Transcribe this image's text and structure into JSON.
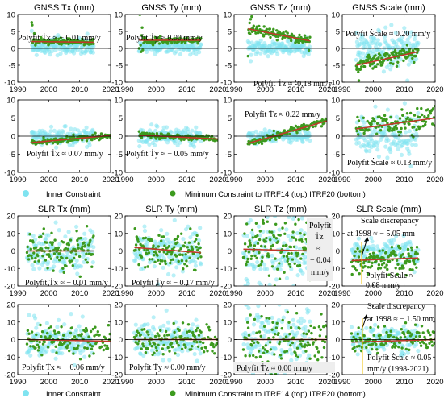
{
  "chart_data": [
    {
      "panel": "gnss-tx",
      "type": "scatter",
      "title": "GNSS Tx (mm)",
      "ylim": [
        -10,
        10
      ],
      "xlim": [
        1990,
        2020
      ],
      "yticks": [
        -10,
        -5,
        0,
        5,
        10
      ],
      "xticks": [
        1990,
        2000,
        2010,
        2020
      ],
      "show_xticklabels": true,
      "annotation": "Polyfit Ṫx ≈ − 0.01 mm/y",
      "fit_slope_mm_per_y": -0.01,
      "inner": {
        "x0": 1994.5,
        "x1": 2014.5,
        "c0": 0.5,
        "c1": 0.3,
        "s": 1.2
      },
      "minimum": {
        "x0": 1994.5,
        "x1": 2014.5,
        "c0": 2.0,
        "c1": 1.8,
        "s": 0.5,
        "early_spread": 4
      }
    },
    {
      "panel": "gnss-ty",
      "type": "scatter",
      "title": "GNSS Ty (mm)",
      "ylim": [
        -10,
        10
      ],
      "xlim": [
        1990,
        2020
      ],
      "yticks": [
        -10,
        -5,
        0,
        5,
        10
      ],
      "xticks": [
        1990,
        2000,
        2010,
        2020
      ],
      "show_xticklabels": true,
      "annotation": "Polyfit Ṫy ≈ 0.00 mm/y",
      "fit_slope_mm_per_y": 0.0,
      "inner": {
        "x0": 1994.5,
        "x1": 2014.5,
        "c0": 0.6,
        "c1": 0.6,
        "s": 1.0
      },
      "minimum": {
        "x0": 1994.5,
        "x1": 2014.5,
        "c0": 2.4,
        "c1": 2.4,
        "s": 0.4,
        "early_spread": 4
      }
    },
    {
      "panel": "gnss-tz",
      "type": "scatter",
      "title": "GNSS Tz (mm)",
      "ylim": [
        -10,
        10
      ],
      "xlim": [
        1990,
        2020
      ],
      "yticks": [
        -10,
        -5,
        0,
        5,
        10
      ],
      "xticks": [
        1990,
        2000,
        2010,
        2020
      ],
      "show_xticklabels": true,
      "annotation": "Polyfit Ṫz ≈ -0.18 mm/y",
      "fit_slope_mm_per_y": -0.18,
      "inner": {
        "x0": 1994.5,
        "x1": 2014.5,
        "c0": 0.5,
        "c1": 0.0,
        "s": 1.0
      },
      "minimum": {
        "x0": 1994.5,
        "x1": 2014.5,
        "c0": 5.8,
        "c1": 2.2,
        "s": 0.7,
        "early_spread": 3
      }
    },
    {
      "panel": "gnss-scale",
      "type": "scatter",
      "title": "GNSS Scale (mm)",
      "ylim": [
        -10,
        10
      ],
      "xlim": [
        1990,
        2020
      ],
      "yticks": [
        -10,
        -5,
        0,
        5,
        10
      ],
      "xticks": [
        1990,
        2000,
        2010,
        2020
      ],
      "show_xticklabels": true,
      "annotation": "Polyfit Ṡcale ≈ 0.20 mm/y",
      "fit_slope_mm_per_y": 0.2,
      "inner": {
        "x0": 1994.5,
        "x1": 2014.5,
        "c0": 0.0,
        "c1": 0.0,
        "s": 3.0
      },
      "minimum": {
        "x0": 1994.5,
        "x1": 2014.5,
        "c0": -5.0,
        "c1": -1.0,
        "s": 1.2,
        "early_spread": 1
      }
    },
    {
      "panel": "gnss-tx-b",
      "type": "scatter",
      "title": "",
      "ylim": [
        -10,
        10
      ],
      "xlim": [
        1990,
        2020
      ],
      "yticks": [
        -10,
        -5,
        0,
        5,
        10
      ],
      "xticks": [
        1990,
        2000,
        2010,
        2020
      ],
      "show_xticklabels": true,
      "annotation": "Polyfit Ṫx ≈ 0.07 mm/y",
      "fit_slope_mm_per_y": 0.07,
      "inner": {
        "x0": 1994.5,
        "x1": 2014.5,
        "c0": 0.0,
        "c1": 0.0,
        "s": 1.2
      },
      "minimum": {
        "x0": 1994.5,
        "x1": 2020,
        "c0": -1.8,
        "c1": 0.2,
        "s": 0.4,
        "early_spread": 0
      }
    },
    {
      "panel": "gnss-ty-b",
      "type": "scatter",
      "title": "",
      "ylim": [
        -10,
        10
      ],
      "xlim": [
        1990,
        2020
      ],
      "yticks": [
        -10,
        -5,
        0,
        5,
        10
      ],
      "xticks": [
        1990,
        2000,
        2010,
        2020
      ],
      "show_xticklabels": true,
      "annotation": "Polyfit Ṫy ≈ − 0.05 mm/y",
      "fit_slope_mm_per_y": -0.05,
      "inner": {
        "x0": 1994.5,
        "x1": 2014.5,
        "c0": 0.0,
        "c1": 0.0,
        "s": 1.2
      },
      "minimum": {
        "x0": 1994.5,
        "x1": 2020,
        "c0": 0.3,
        "c1": -0.8,
        "s": 0.4,
        "early_spread": 0
      }
    },
    {
      "panel": "gnss-tz-b",
      "type": "scatter",
      "title": "",
      "ylim": [
        -10,
        10
      ],
      "xlim": [
        1990,
        2020
      ],
      "yticks": [
        -10,
        -5,
        0,
        5,
        10
      ],
      "xticks": [
        1990,
        2000,
        2010,
        2020
      ],
      "show_xticklabels": true,
      "annotation": "Polyfit Ṫz ≈ 0.22 mm/y",
      "fit_slope_mm_per_y": 0.22,
      "inner": {
        "x0": 1994.5,
        "x1": 2014.5,
        "c0": 0.0,
        "c1": 0.0,
        "s": 0.8
      },
      "minimum": {
        "x0": 1994.5,
        "x1": 2020,
        "c0": -2.0,
        "c1": 4.2,
        "s": 0.5,
        "early_spread": 0
      }
    },
    {
      "panel": "gnss-scale-b",
      "type": "scatter",
      "title": "",
      "ylim": [
        -10,
        10
      ],
      "xlim": [
        1990,
        2020
      ],
      "yticks": [
        -10,
        -5,
        0,
        5,
        10
      ],
      "xticks": [
        1990,
        2000,
        2010,
        2020
      ],
      "show_xticklabels": true,
      "annotation": "Polyfit Ṡcale ≈ 0.13 mm/y",
      "fit_slope_mm_per_y": 0.13,
      "inner": {
        "x0": 1994.5,
        "x1": 2014.5,
        "c0": 0.0,
        "c1": 0.0,
        "s": 3.0
      },
      "minimum": {
        "x0": 1994.5,
        "x1": 2020,
        "c0": 2.0,
        "c1": 5.0,
        "s": 1.5,
        "early_spread": 0
      }
    },
    {
      "panel": "slr-tx",
      "type": "scatter",
      "title": "SLR Tx (mm)",
      "ylim": [
        -20,
        20
      ],
      "xlim": [
        1990,
        2020
      ],
      "yticks": [
        -20,
        -10,
        0,
        10,
        20
      ],
      "xticks": [
        1990,
        2000,
        2010,
        2020
      ],
      "show_xticklabels": true,
      "annotation": "Polyfit Ṫx ≈ − 0.01 mm/y",
      "fit_slope_mm_per_y": -0.01,
      "inner": {
        "x0": 1993,
        "x1": 2014.5,
        "c0": 0.0,
        "c1": 0.0,
        "s": 6.0
      },
      "minimum": {
        "x0": 1993,
        "x1": 2014.5,
        "c0": 0.0,
        "c1": 0.0,
        "s": 5.0,
        "early_spread": 0
      }
    },
    {
      "panel": "slr-ty",
      "type": "scatter",
      "title": "SLR Ty (mm)",
      "ylim": [
        -20,
        20
      ],
      "xlim": [
        1990,
        2020
      ],
      "yticks": [
        -20,
        -10,
        0,
        10,
        20
      ],
      "xticks": [
        1990,
        2000,
        2010,
        2020
      ],
      "show_xticklabels": true,
      "annotation": "Polyfit Ṫy ≈ − 0.17 mm/y",
      "fit_slope_mm_per_y": -0.17,
      "inner": {
        "x0": 1993,
        "x1": 2014.5,
        "c0": 0.0,
        "c1": 0.0,
        "s": 6.0
      },
      "minimum": {
        "x0": 1993,
        "x1": 2014.5,
        "c0": 2.0,
        "c1": -1.0,
        "s": 5.0,
        "early_spread": 0
      }
    },
    {
      "panel": "slr-tz",
      "type": "scatter",
      "title": "SLR Tz (mm)",
      "ylim": [
        -20,
        20
      ],
      "xlim": [
        1990,
        2020
      ],
      "yticks": [
        -20,
        -10,
        0,
        10,
        20
      ],
      "xticks": [
        1990,
        2000,
        2010,
        2020
      ],
      "show_xticklabels": true,
      "annotation": "Polyfit Ṫz ≈ − 0.04 mm/y",
      "fit_slope_mm_per_y": -0.04,
      "inner": {
        "x0": 1993,
        "x1": 2014.5,
        "c0": 0.0,
        "c1": 0.0,
        "s": 10.0
      },
      "minimum": {
        "x0": 1993,
        "x1": 2014.5,
        "c0": 1.0,
        "c1": 0.0,
        "s": 8.0,
        "early_spread": 0
      }
    },
    {
      "panel": "slr-scale",
      "type": "scatter",
      "title": "SLR Scale (mm)",
      "ylim": [
        -20,
        20
      ],
      "xlim": [
        1990,
        2020
      ],
      "yticks": [
        -20,
        -10,
        0,
        10,
        20
      ],
      "xticks": [
        1990,
        2000,
        2010,
        2020
      ],
      "show_xticklabels": true,
      "annotation": "Polyfit Ṡcale ≈ 0.08 mm/y",
      "fit_slope_mm_per_y": 0.08,
      "annotation2": "Scale discrepancy at 1998 ≈ − 5.05 mm",
      "discrepancy_year": 1998,
      "discrepancy_mm": -5.05,
      "inner": {
        "x0": 1993,
        "x1": 2014.5,
        "c0": 0.0,
        "c1": 0.0,
        "s": 4.0
      },
      "minimum": {
        "x0": 1993,
        "x1": 2014.5,
        "c0": -5.5,
        "c1": -4.0,
        "s": 4.0,
        "early_spread": 0
      }
    },
    {
      "panel": "slr-tx-b",
      "type": "scatter",
      "title": "",
      "ylim": [
        -20,
        20
      ],
      "xlim": [
        1990,
        2020
      ],
      "yticks": [
        -20,
        -10,
        0,
        10,
        20
      ],
      "xticks": [
        1990,
        2000,
        2010,
        2020
      ],
      "show_xticklabels": true,
      "annotation": "Polyfit Ṫx ≈ − 0.06 mm/y",
      "fit_slope_mm_per_y": -0.06,
      "inner": {
        "x0": 1993,
        "x1": 2014.5,
        "c0": 0.0,
        "c1": 0.0,
        "s": 5.0
      },
      "minimum": {
        "x0": 1993,
        "x1": 2020,
        "c0": 0.0,
        "c1": -1.0,
        "s": 4.0,
        "early_spread": 0
      }
    },
    {
      "panel": "slr-ty-b",
      "type": "scatter",
      "title": "",
      "ylim": [
        -20,
        20
      ],
      "xlim": [
        1990,
        2020
      ],
      "yticks": [
        -20,
        -10,
        0,
        10,
        20
      ],
      "xticks": [
        1990,
        2000,
        2010,
        2020
      ],
      "show_xticklabels": true,
      "annotation": "Polyfit Ṫy ≈ 0.00 mm/y",
      "fit_slope_mm_per_y": 0.0,
      "inner": {
        "x0": 1993,
        "x1": 2014.5,
        "c0": 0.0,
        "c1": 0.0,
        "s": 5.0
      },
      "minimum": {
        "x0": 1993,
        "x1": 2020,
        "c0": 0.0,
        "c1": 0.0,
        "s": 4.0,
        "early_spread": 0
      }
    },
    {
      "panel": "slr-tz-b",
      "type": "scatter",
      "title": "",
      "ylim": [
        -20,
        20
      ],
      "xlim": [
        1990,
        2020
      ],
      "yticks": [
        -20,
        -10,
        0,
        10,
        20
      ],
      "xticks": [
        1990,
        2000,
        2010,
        2020
      ],
      "show_xticklabels": true,
      "annotation": "Polyfit Ṫz ≈ 0.00 mm/y",
      "fit_slope_mm_per_y": 0.0,
      "inner": {
        "x0": 1993,
        "x1": 2014.5,
        "c0": 0.0,
        "c1": 0.0,
        "s": 9.0
      },
      "minimum": {
        "x0": 1993,
        "x1": 2020,
        "c0": 0.0,
        "c1": 0.0,
        "s": 7.0,
        "early_spread": 0
      }
    },
    {
      "panel": "slr-scale-b",
      "type": "scatter",
      "title": "",
      "ylim": [
        -20,
        20
      ],
      "xlim": [
        1990,
        2020
      ],
      "yticks": [
        -20,
        -10,
        0,
        10,
        20
      ],
      "xticks": [
        1990,
        2000,
        2010,
        2020
      ],
      "show_xticklabels": true,
      "annotation": "Polyfit Ṡcale ≈ 0.05 mm/y (1998-2021)",
      "fit_slope_mm_per_y": 0.05,
      "annotation2": "Scale discrepancy at 1998 ≈ − 1.50 mm",
      "discrepancy_year": 1998,
      "discrepancy_mm": -1.5,
      "inner": {
        "x0": 1993,
        "x1": 2014.5,
        "c0": 0.0,
        "c1": 0.0,
        "s": 4.0
      },
      "minimum": {
        "x0": 1993,
        "x1": 2020,
        "c0": -1.5,
        "c1": 0.0,
        "s": 3.5,
        "early_spread": 0
      }
    }
  ],
  "legend": {
    "inner_label": "Inner Constraint",
    "minimum_label": "Minimum Constraint to ITRF14 (top) ITRF20 (bottom)",
    "colors": {
      "inner": "#7fe3f0",
      "minimum": "#3c9a1e",
      "fit": "#c0392b"
    }
  },
  "annotations": {
    "gnss_tx_top": "Polyfit Ṫx ≈ − 0.01 mm/y",
    "gnss_ty_top": "Polyfit Ṫy ≈ 0.00 mm/y",
    "gnss_tz_top": "Polyfit Ṫz ≈ -0.18 mm/y",
    "gnss_scale_top": "Polyfit Ṡcale ≈ 0.20 mm/y",
    "gnss_tx_bot": "Polyfit Ṫx ≈ 0.07 mm/y",
    "gnss_ty_bot": "Polyfit Ṫy ≈ − 0.05 mm/y",
    "gnss_tz_bot": "Polyfit Ṫz ≈ 0.22 mm/y",
    "gnss_scale_bot": "Polyfit Ṡcale ≈ 0.13 mm/y",
    "slr_tx_top": "Polyfit Ṫx ≈ − 0.01 mm/y",
    "slr_ty_top": "Polyfit Ṫy ≈ − 0.17 mm/y",
    "slr_tz_top_1": "Polyfit",
    "slr_tz_top_2": "Ṫz",
    "slr_tz_top_3": "≈",
    "slr_tz_top_4": "− 0.04",
    "slr_tz_top_5": "mm/y",
    "slr_scale_top_1": "Scale discrepancy",
    "slr_scale_top_2": "at 1998 ≈ − 5.05 mm",
    "slr_scale_top_3": "Polyfit Ṡcale ≈",
    "slr_scale_top_4": "0.08 mm/y",
    "slr_tx_bot": "Polyfit Ṫx ≈ − 0.06 mm/y",
    "slr_ty_bot": "Polyfit Ṫy ≈ 0.00 mm/y",
    "slr_tz_bot": "Polyfit Ṫz ≈ 0.00 mm/y",
    "slr_scale_bot_1": "Scale discrepancy",
    "slr_scale_bot_2": "at 1998 ≈ − 1.50 mm",
    "slr_scale_bot_3": "Polyfit Ṡcale ≈ 0.05",
    "slr_scale_bot_4": "mm/y (1998-2021)"
  }
}
